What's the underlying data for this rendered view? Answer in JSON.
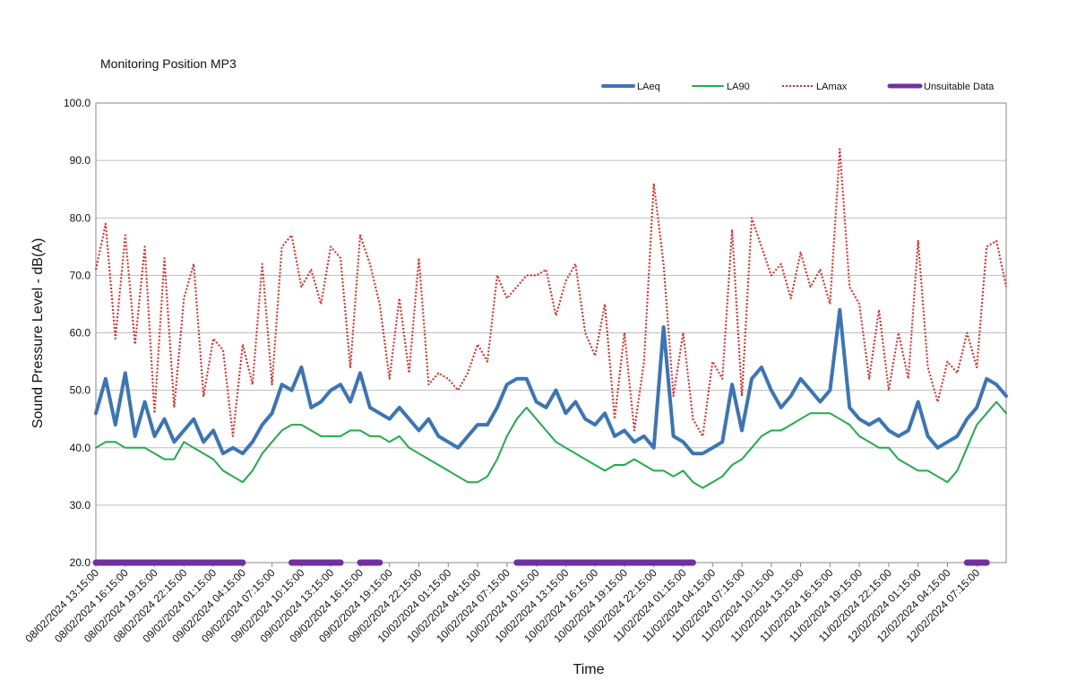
{
  "chart_data": {
    "type": "line",
    "title": "Monitoring Position MP3",
    "ylabel": "Sound Pressure Level - dB(A)",
    "xlabel": "Time",
    "categories": [
      "08/02/2024 13:15:00",
      null,
      null,
      "08/02/2024 16:15:00",
      null,
      null,
      "08/02/2024 19:15:00",
      null,
      null,
      "08/02/2024 22:15:00",
      null,
      null,
      "09/02/2024 01:15:00",
      null,
      null,
      "09/02/2024 04:15:00",
      null,
      null,
      "09/02/2024 07:15:00",
      null,
      null,
      "09/02/2024 10:15:00",
      null,
      null,
      "09/02/2024 13:15:00",
      null,
      null,
      "09/02/2024 16:15:00",
      null,
      null,
      "09/02/2024 19:15:00",
      null,
      null,
      "09/02/2024 22:15:00",
      null,
      null,
      "10/02/2024 01:15:00",
      null,
      null,
      "10/02/2024 04:15:00",
      null,
      null,
      "10/02/2024 07:15:00",
      null,
      null,
      "10/02/2024 10:15:00",
      null,
      null,
      "10/02/2024 13:15:00",
      null,
      null,
      "10/02/2024 16:15:00",
      null,
      null,
      "10/02/2024 19:15:00",
      null,
      null,
      "10/02/2024 22:15:00",
      null,
      null,
      "11/02/2024 01:15:00",
      null,
      null,
      "11/02/2024 04:15:00",
      null,
      null,
      "11/02/2024 07:15:00",
      null,
      null,
      "11/02/2024 10:15:00",
      null,
      null,
      "11/02/2024 13:15:00",
      null,
      null,
      "11/02/2024 16:15:00",
      null,
      null,
      "11/02/2024 19:15:00",
      null,
      null,
      "11/02/2024 22:15:00",
      null,
      null,
      "12/02/2024 01:15:00",
      null,
      null,
      "12/02/2024 04:15:00",
      null,
      null,
      "12/02/2024 07:15:00",
      null,
      null,
      null
    ],
    "series": [
      {
        "name": "LAeq",
        "color": "#3a75b8",
        "linewidth": 4,
        "linestyle": "solid",
        "values": [
          46,
          52,
          44,
          53,
          42,
          48,
          42,
          45,
          41,
          43,
          45,
          41,
          43,
          39,
          40,
          39,
          41,
          44,
          46,
          51,
          50,
          54,
          47,
          48,
          50,
          51,
          48,
          53,
          47,
          46,
          45,
          47,
          45,
          43,
          45,
          42,
          41,
          40,
          42,
          44,
          44,
          47,
          51,
          52,
          52,
          48,
          47,
          50,
          46,
          48,
          45,
          44,
          46,
          42,
          43,
          41,
          42,
          40,
          61,
          42,
          41,
          39,
          39,
          40,
          41,
          51,
          43,
          52,
          54,
          50,
          47,
          49,
          52,
          50,
          48,
          50,
          64,
          47,
          45,
          44,
          45,
          43,
          42,
          43,
          48,
          42,
          40,
          41,
          42,
          45,
          47,
          52,
          51,
          49
        ]
      },
      {
        "name": "LA90",
        "color": "#1fae4a",
        "linewidth": 2,
        "linestyle": "solid",
        "values": [
          40,
          41,
          41,
          40,
          40,
          40,
          39,
          38,
          38,
          41,
          40,
          39,
          38,
          36,
          35,
          34,
          36,
          39,
          41,
          43,
          44,
          44,
          43,
          42,
          42,
          42,
          43,
          43,
          42,
          42,
          41,
          42,
          40,
          39,
          38,
          37,
          36,
          35,
          34,
          34,
          35,
          38,
          42,
          45,
          47,
          45,
          43,
          41,
          40,
          39,
          38,
          37,
          36,
          37,
          37,
          38,
          37,
          36,
          36,
          35,
          36,
          34,
          33,
          34,
          35,
          37,
          38,
          40,
          42,
          43,
          43,
          44,
          45,
          46,
          46,
          46,
          45,
          44,
          42,
          41,
          40,
          40,
          38,
          37,
          36,
          36,
          35,
          34,
          36,
          40,
          44,
          46,
          48,
          46
        ]
      },
      {
        "name": "LAmax",
        "color": "#e8241f",
        "linewidth": 2,
        "linestyle": "dotted",
        "values": [
          71,
          79,
          59,
          77,
          58,
          75,
          46,
          73,
          47,
          66,
          72,
          49,
          59,
          57,
          42,
          58,
          51,
          72,
          51,
          75,
          77,
          68,
          71,
          65,
          75,
          73,
          54,
          77,
          72,
          65,
          52,
          66,
          53,
          73,
          51,
          53,
          52,
          50,
          53,
          58,
          55,
          70,
          66,
          68,
          70,
          70,
          71,
          63,
          69,
          72,
          60,
          56,
          65,
          45,
          60,
          43,
          55,
          86,
          72,
          49,
          60,
          45,
          42,
          55,
          52,
          78,
          49,
          80,
          75,
          70,
          72,
          66,
          74,
          68,
          71,
          65,
          92,
          68,
          65,
          52,
          64,
          50,
          60,
          52,
          76,
          54,
          48,
          55,
          53,
          60,
          54,
          75,
          76,
          68
        ]
      },
      {
        "name": "Unsuitable Data",
        "color": "#7030a0",
        "linewidth": 7,
        "linestyle": "solid",
        "values": [
          20,
          20,
          20,
          20,
          20,
          20,
          20,
          20,
          20,
          20,
          20,
          20,
          20,
          20,
          20,
          20,
          null,
          null,
          null,
          null,
          20,
          20,
          20,
          20,
          20,
          20,
          null,
          20,
          20,
          20,
          null,
          null,
          null,
          null,
          null,
          null,
          null,
          null,
          null,
          null,
          null,
          null,
          null,
          20,
          20,
          20,
          20,
          20,
          20,
          20,
          20,
          20,
          20,
          20,
          20,
          20,
          20,
          20,
          20,
          20,
          20,
          20,
          null,
          null,
          null,
          null,
          null,
          null,
          null,
          null,
          null,
          null,
          null,
          null,
          null,
          null,
          null,
          null,
          null,
          null,
          null,
          null,
          null,
          null,
          null,
          null,
          null,
          null,
          null,
          20,
          20,
          20,
          null,
          null
        ]
      }
    ],
    "ylim": [
      20,
      100
    ],
    "yticks": [
      {
        "value": 20,
        "label": "20.0"
      },
      {
        "value": 30,
        "label": "30.0"
      },
      {
        "value": 40,
        "label": "40.0"
      },
      {
        "value": 50,
        "label": "50.0"
      },
      {
        "value": 60,
        "label": "60.0"
      },
      {
        "value": 70,
        "label": "70.0"
      },
      {
        "value": 80,
        "label": "80.0"
      },
      {
        "value": 90,
        "label": "90.0"
      },
      {
        "value": 100,
        "label": "100.0"
      }
    ],
    "grid": true,
    "legend": "top-right"
  }
}
